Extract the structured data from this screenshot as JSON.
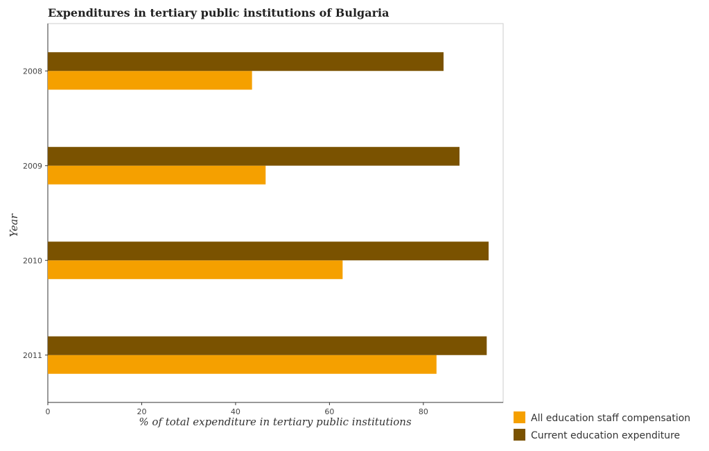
{
  "chart_data": {
    "type": "bar",
    "orientation": "horizontal",
    "title": "Expenditures in tertiary public institutions of Bulgaria",
    "xlabel": "% of total expenditure in tertiary public institutions",
    "ylabel": "Year",
    "categories": [
      "2008",
      "2009",
      "2010",
      "2011"
    ],
    "xlim": [
      0,
      97
    ],
    "x_ticks": [
      0,
      20,
      40,
      60,
      80
    ],
    "grid": false,
    "legend_position": "bottom-right",
    "series": [
      {
        "name": "All education staff compensation",
        "color": "#f5a000",
        "values": [
          43.5,
          46.4,
          62.8,
          82.8
        ]
      },
      {
        "name": "Current education expenditure",
        "color": "#7a5200",
        "values": [
          84.3,
          87.7,
          93.9,
          93.5
        ]
      }
    ]
  }
}
